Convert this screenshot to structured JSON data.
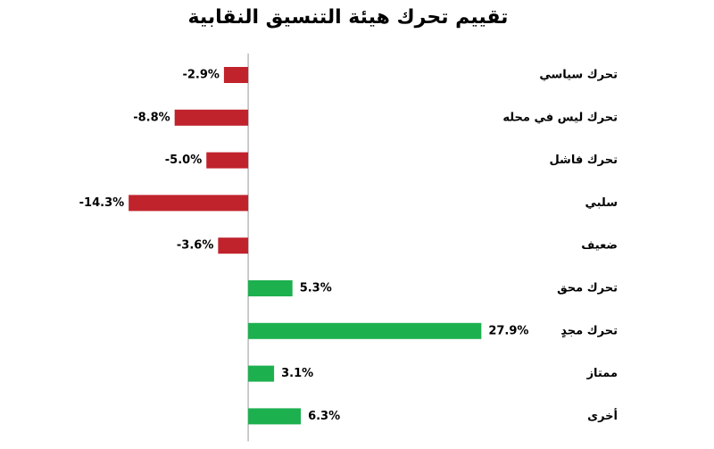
{
  "chart_data": {
    "type": "bar",
    "orientation": "horizontal",
    "title": "تقييم تحرك هيئة التنسيق النقابية",
    "categories": [
      "تحرك سياسي",
      "تحرك ليس في محله",
      "تحرك فاشل",
      "سلبي",
      "ضعيف",
      "تحرك محق",
      "تحرك مجدٍ",
      "ممتاز",
      "أخرى"
    ],
    "values": [
      -2.9,
      -8.8,
      -5.0,
      -14.3,
      -3.6,
      5.3,
      27.9,
      3.1,
      6.3
    ],
    "value_labels": [
      "-2.9%",
      "-8.8%",
      "-5.0%",
      "-14.3%",
      "-3.6%",
      "5.3%",
      "27.9%",
      "3.1%",
      "6.3%"
    ],
    "color_negative": "#c0232c",
    "color_positive": "#1db04f",
    "xlim": [
      -15,
      30
    ]
  }
}
